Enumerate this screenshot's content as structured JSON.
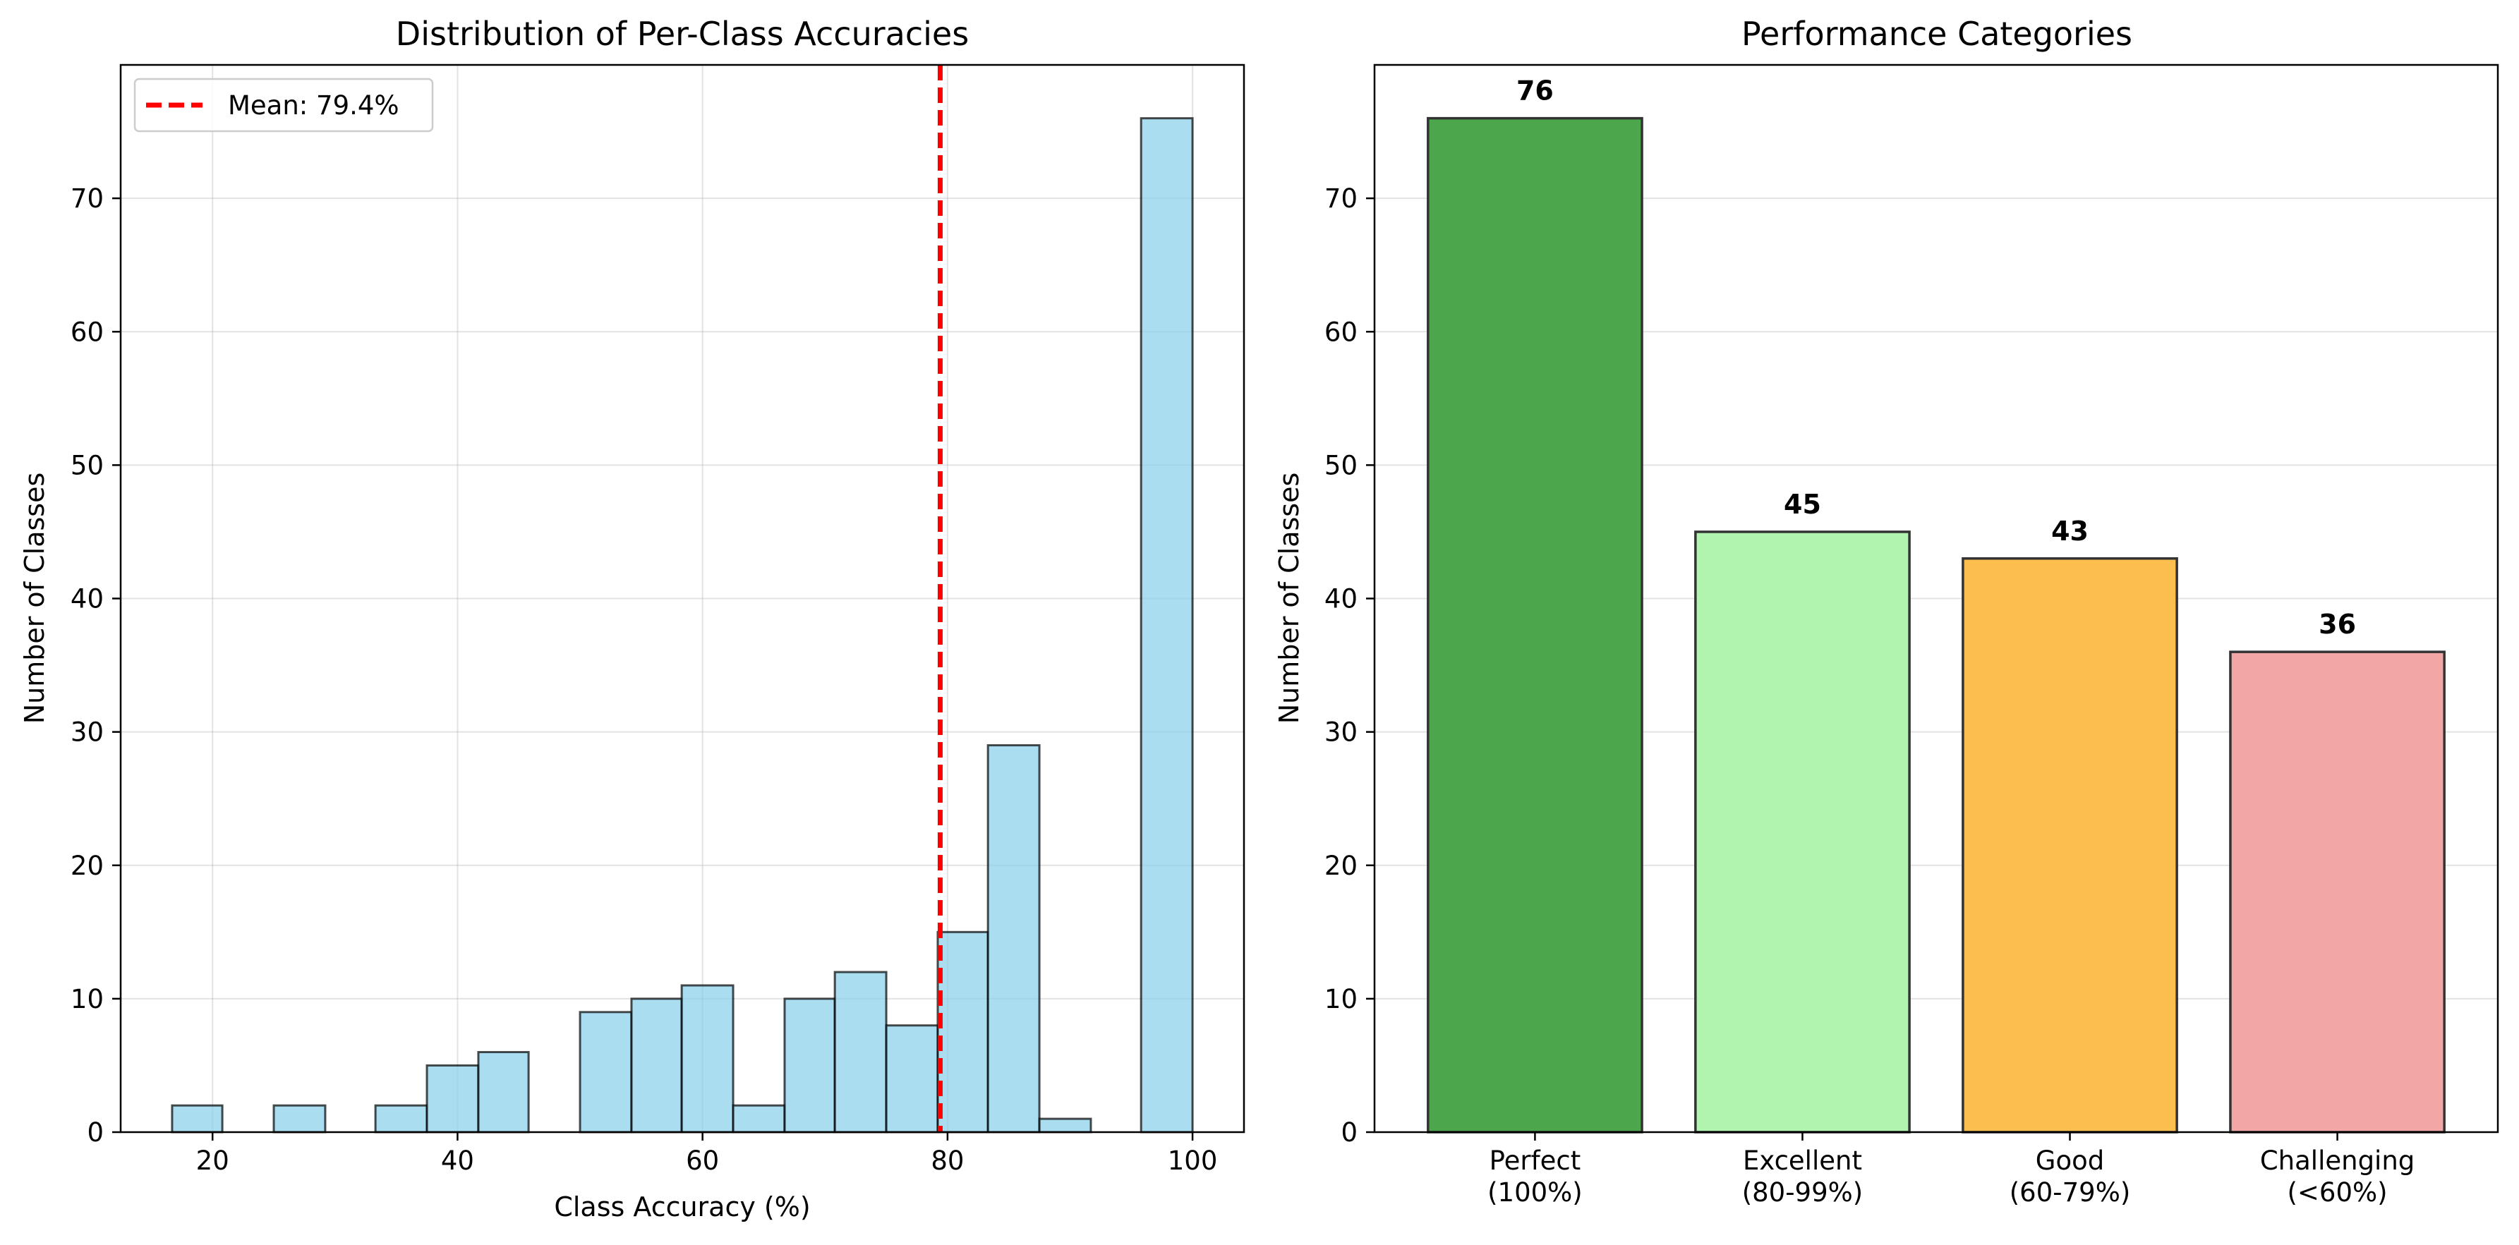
{
  "chart_data": [
    {
      "type": "bar",
      "subtype": "histogram",
      "title": "Distribution of Per-Class Accuracies",
      "xlabel": "Class Accuracy (%)",
      "ylabel": "Number of Classes",
      "xlim": [
        12.5,
        104.2
      ],
      "ylim": [
        0,
        80
      ],
      "xticks": [
        20,
        40,
        60,
        80,
        100
      ],
      "yticks": [
        0,
        10,
        20,
        30,
        40,
        50,
        60,
        70
      ],
      "grid": true,
      "bar_color": "#87CEEB",
      "edge_color": "#000000",
      "bins": [
        {
          "start": 16.7,
          "end": 20.8,
          "count": 2
        },
        {
          "start": 20.8,
          "end": 25.0,
          "count": 0
        },
        {
          "start": 25.0,
          "end": 29.2,
          "count": 2
        },
        {
          "start": 29.2,
          "end": 33.3,
          "count": 0
        },
        {
          "start": 33.3,
          "end": 37.5,
          "count": 2
        },
        {
          "start": 37.5,
          "end": 41.7,
          "count": 5
        },
        {
          "start": 41.7,
          "end": 45.8,
          "count": 6
        },
        {
          "start": 45.8,
          "end": 50.0,
          "count": 0
        },
        {
          "start": 50.0,
          "end": 54.2,
          "count": 9
        },
        {
          "start": 54.2,
          "end": 58.3,
          "count": 10
        },
        {
          "start": 58.3,
          "end": 62.5,
          "count": 11
        },
        {
          "start": 62.5,
          "end": 66.7,
          "count": 2
        },
        {
          "start": 66.7,
          "end": 70.8,
          "count": 10
        },
        {
          "start": 70.8,
          "end": 75.0,
          "count": 12
        },
        {
          "start": 75.0,
          "end": 79.2,
          "count": 8
        },
        {
          "start": 79.2,
          "end": 83.3,
          "count": 15
        },
        {
          "start": 83.3,
          "end": 87.5,
          "count": 29
        },
        {
          "start": 87.5,
          "end": 91.7,
          "count": 1
        },
        {
          "start": 91.7,
          "end": 95.8,
          "count": 0
        },
        {
          "start": 95.8,
          "end": 100.0,
          "count": 76
        }
      ],
      "mean_line": {
        "value": 79.4,
        "label": "Mean: 79.4%",
        "color": "#ff0000",
        "style": "dashed"
      },
      "legend_position": "top-left"
    },
    {
      "type": "bar",
      "title": "Performance Categories",
      "xlabel": "",
      "ylabel": "Number of Classes",
      "ylim": [
        0,
        80
      ],
      "yticks": [
        0,
        10,
        20,
        30,
        40,
        50,
        60,
        70
      ],
      "grid": true,
      "categories": [
        {
          "line1": "Perfect",
          "line2": "(100%)"
        },
        {
          "line1": "Excellent",
          "line2": "(80-99%)"
        },
        {
          "line1": "Good",
          "line2": "(60-79%)"
        },
        {
          "line1": "Challenging",
          "line2": "(<60%)"
        }
      ],
      "values": [
        76,
        45,
        43,
        36
      ],
      "colors": [
        "#4CA64C",
        "#B0F4B0",
        "#FCBE4E",
        "#F2A6A6"
      ],
      "edge_color": "#333333",
      "data_labels": [
        "76",
        "45",
        "43",
        "36"
      ]
    }
  ]
}
